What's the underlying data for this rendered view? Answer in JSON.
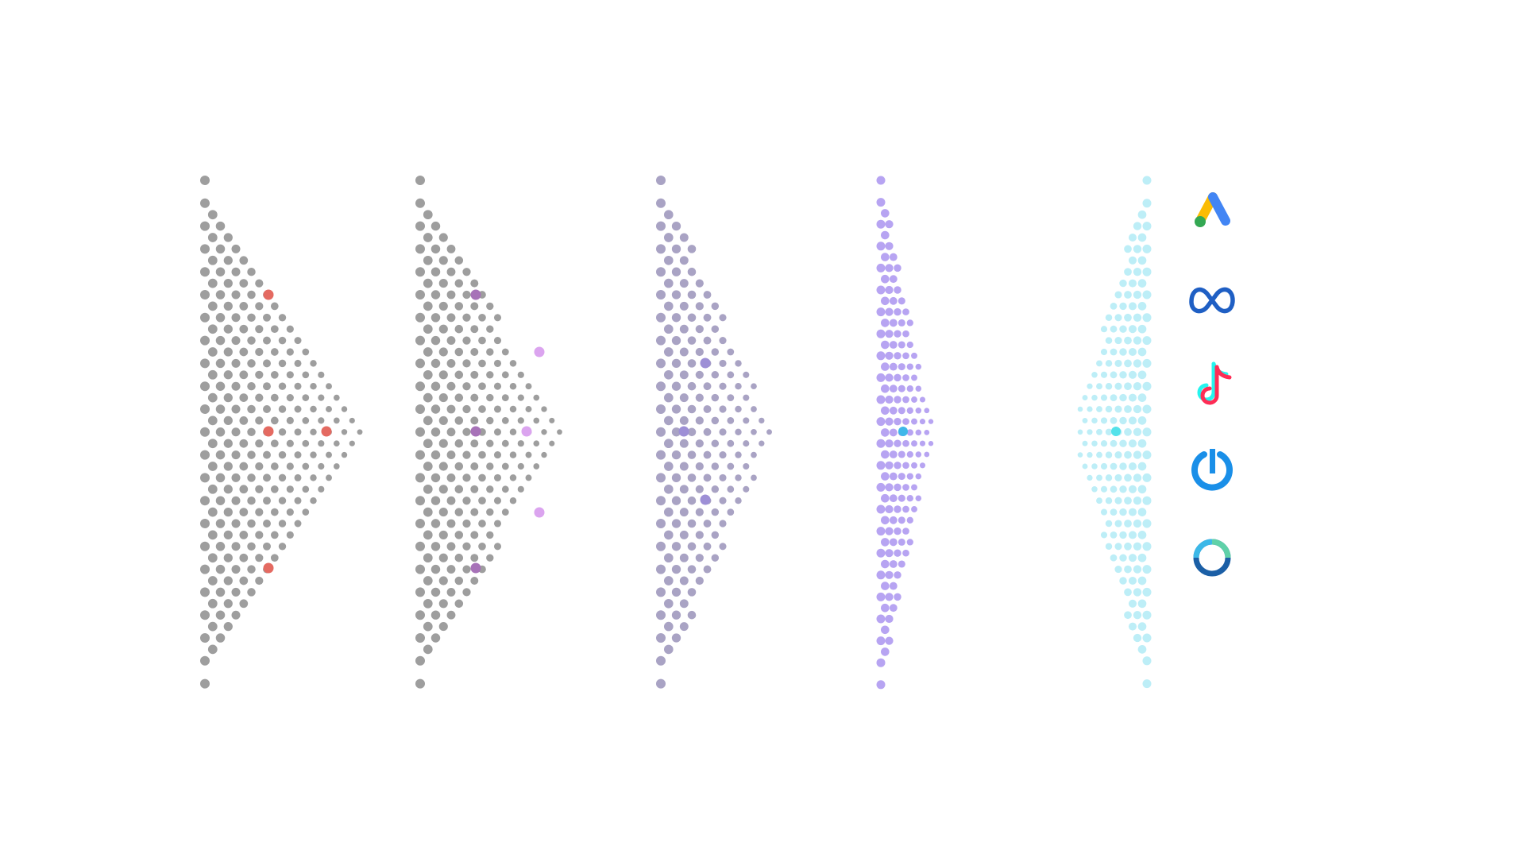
{
  "colors": {
    "background": "#ffffff",
    "gray_dot": "#9e9e9e",
    "slate_dot": "#a9a3c4",
    "purple_dot": "#b7a4f2",
    "cyan_dot": "#bdeef7",
    "red_highlight": "#e46a61",
    "violet_highlight": "#a772b8",
    "pink_highlight": "#dba4ef",
    "indigo_highlight": "#9d8fd6",
    "blue_highlight": "#3fb7e9",
    "teal_highlight": "#54e2ea"
  },
  "funnels": [
    {
      "name": "funnel-stage-1",
      "dot_color": "gray_dot"
    },
    {
      "name": "funnel-stage-2",
      "dot_color": "gray_dot"
    },
    {
      "name": "funnel-stage-3",
      "dot_color": "slate_dot"
    },
    {
      "name": "funnel-stage-4",
      "dot_color": "purple_dot"
    },
    {
      "name": "funnel-stage-5",
      "dot_color": "cyan_dot"
    }
  ],
  "platforms": [
    {
      "name": "google-ads-icon"
    },
    {
      "name": "meta-icon"
    },
    {
      "name": "tiktok-icon"
    },
    {
      "name": "power-icon"
    },
    {
      "name": "ring-icon"
    }
  ]
}
